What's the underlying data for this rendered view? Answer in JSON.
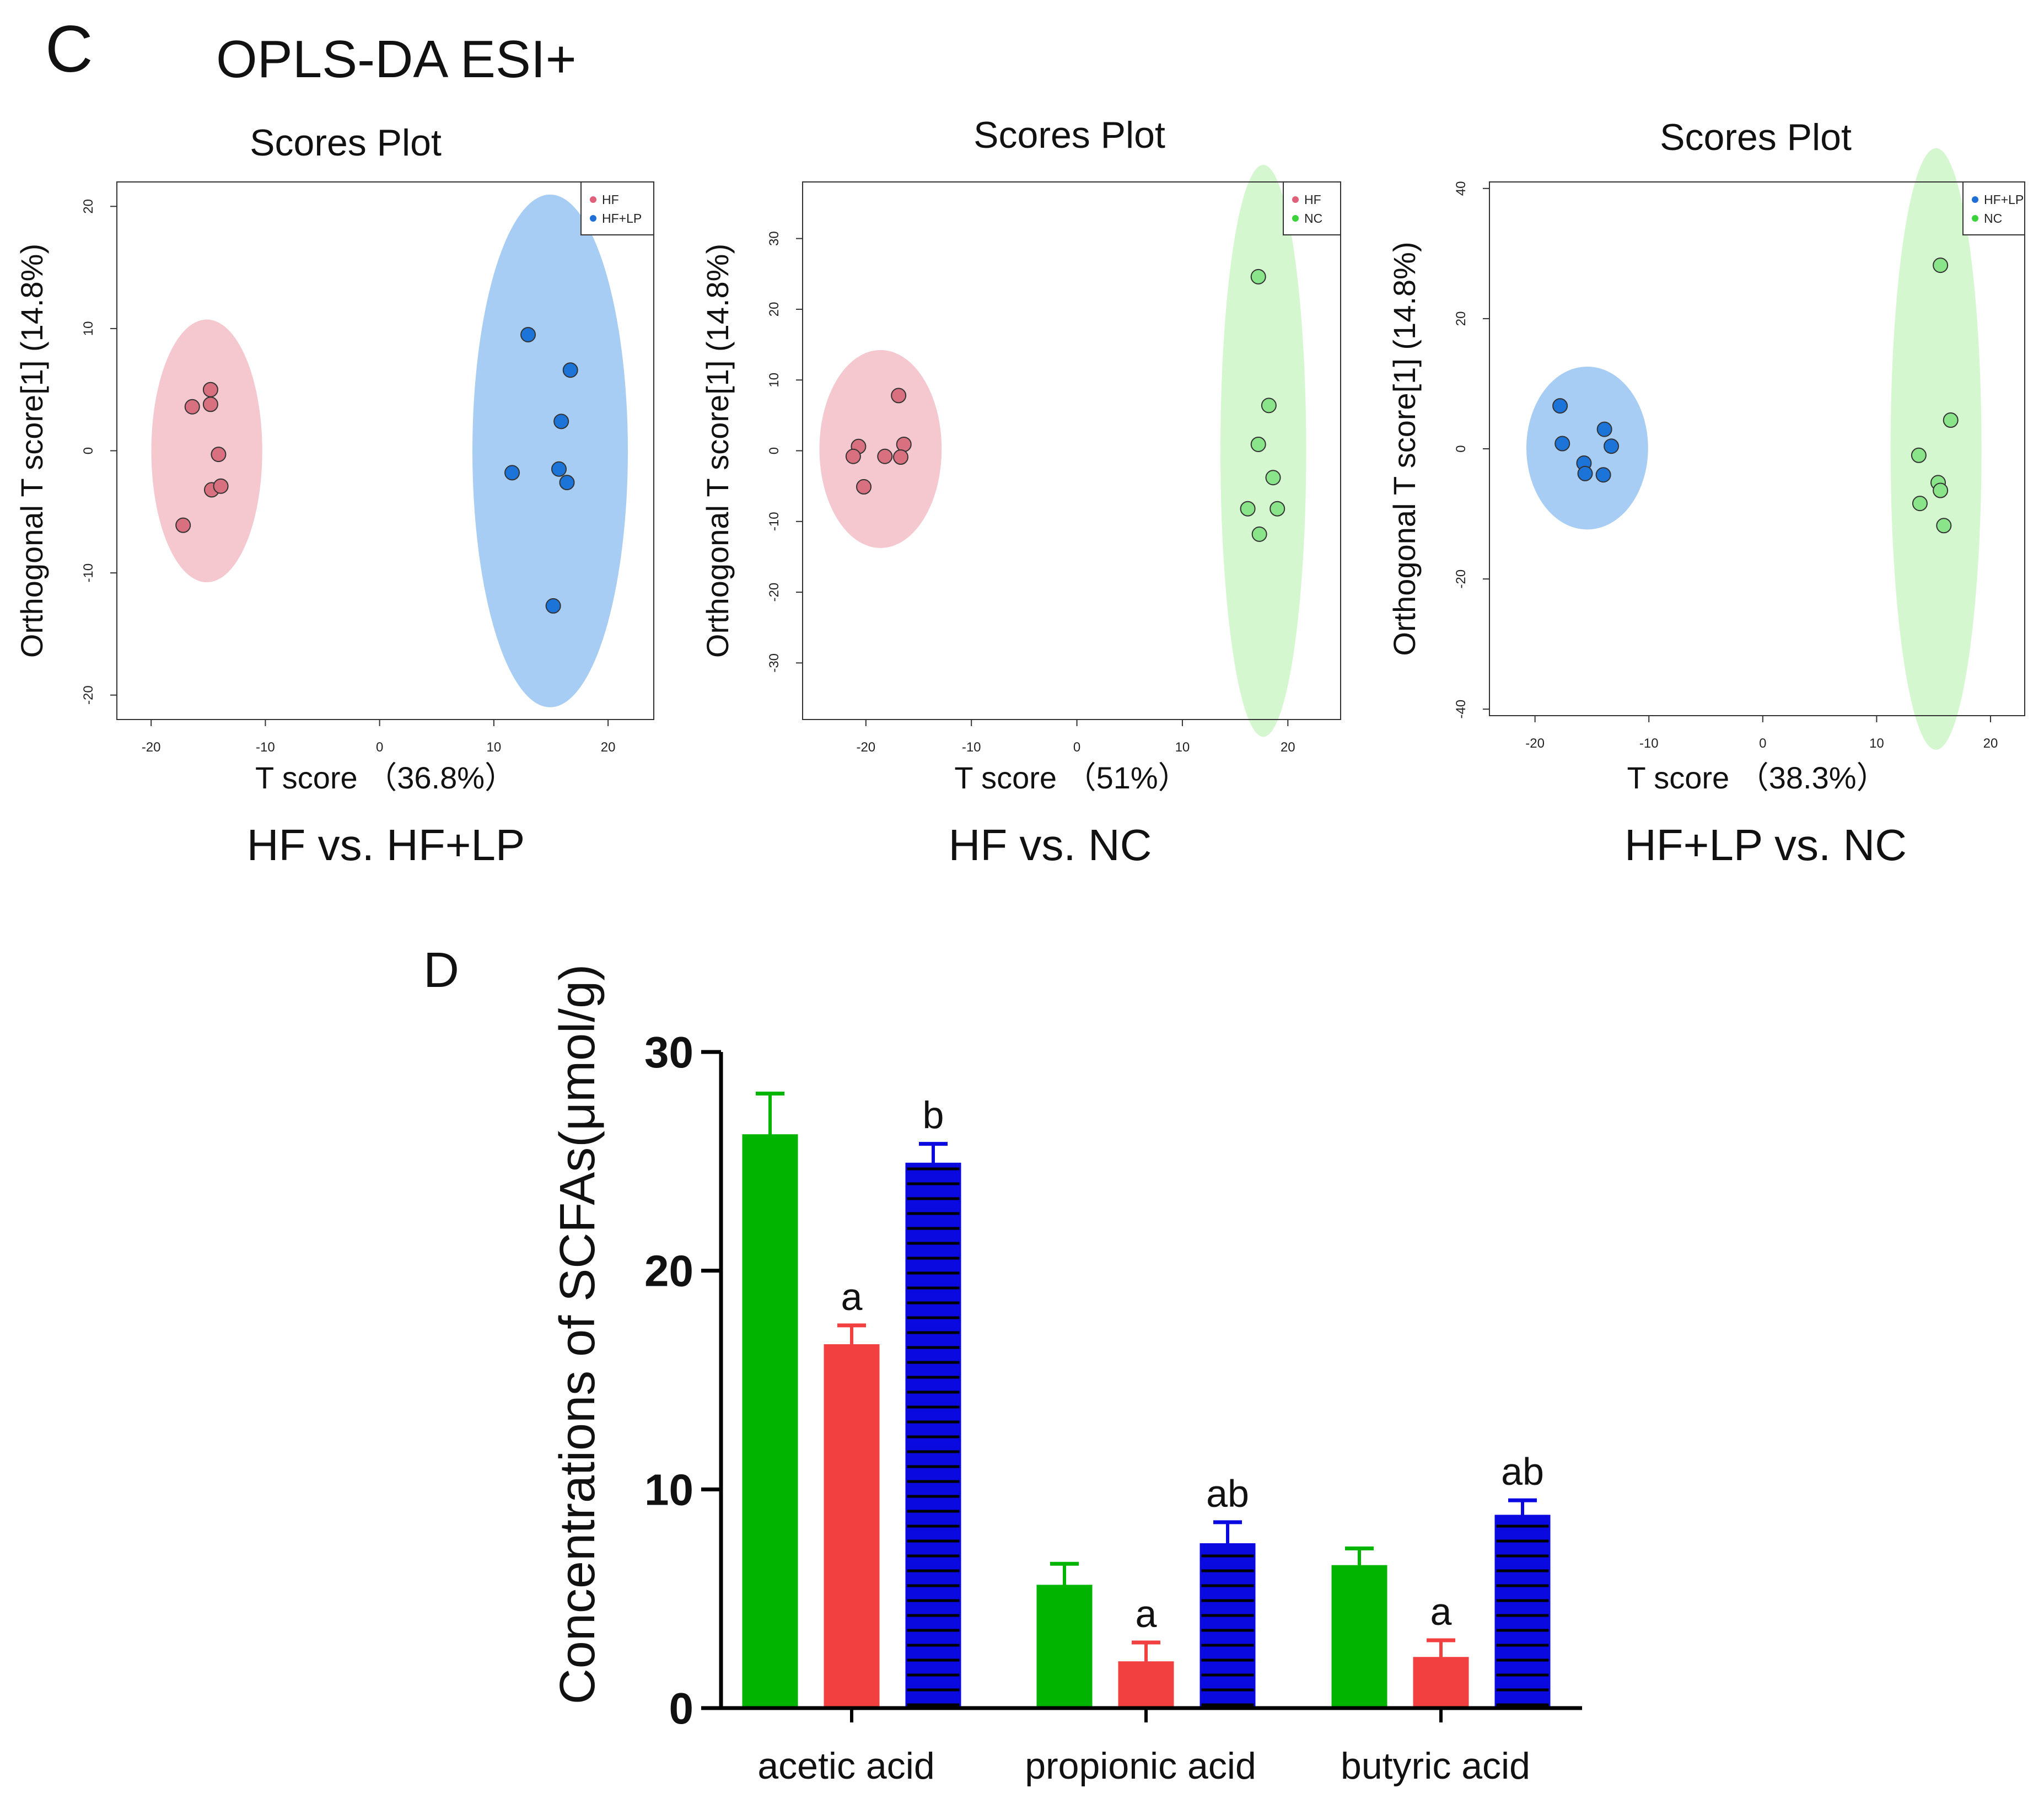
{
  "panel_c": {
    "letter": "C",
    "title": "OPLS-DA   ESI+"
  },
  "panel_d": {
    "letter": "D"
  },
  "chart_data": [
    {
      "type": "scatter",
      "title": "Scores   Plot",
      "subtitle": "HF vs. HF+LP",
      "xlabel": "T score   （36.8%）",
      "ylabel": "Orthogonal T   score[1] (14.8%)",
      "xlim": [
        -23,
        24
      ],
      "ylim": [
        -22,
        22
      ],
      "xticks": [
        -20,
        -10,
        0,
        10,
        20
      ],
      "yticks": [
        -20,
        -10,
        0,
        10,
        20
      ],
      "xtick_labels": [
        "-20",
        "-10",
        "0",
        "10",
        "20"
      ],
      "ytick_labels": [
        "-20",
        "-10",
        "0",
        "10",
        "20"
      ],
      "legend_position": "top-right",
      "series": [
        {
          "name": "HF",
          "color": "#e0607a",
          "fill": "#d9707f",
          "ellipse": "#f5c8cf",
          "points": [
            [
              -14.8,
              5.0
            ],
            [
              -16.4,
              3.6
            ],
            [
              -14.8,
              3.8
            ],
            [
              -14.1,
              -0.3
            ],
            [
              -14.7,
              -3.2
            ],
            [
              -13.9,
              -2.9
            ],
            [
              -17.2,
              -6.1
            ]
          ]
        },
        {
          "name": "HF+LP",
          "color": "#1f6fd6",
          "fill": "#1d74d8",
          "ellipse": "#a8cdf5",
          "points": [
            [
              13.0,
              9.5
            ],
            [
              16.7,
              6.6
            ],
            [
              15.9,
              2.4
            ],
            [
              11.6,
              -1.8
            ],
            [
              15.7,
              -1.5
            ],
            [
              16.4,
              -2.6
            ],
            [
              15.2,
              -12.7
            ]
          ]
        }
      ]
    },
    {
      "type": "scatter",
      "title": "Scores   Plot",
      "subtitle": "HF vs. NC",
      "xlabel": "T score   （51%）",
      "ylabel": "Orthogonal T   score[1] (14.8%)",
      "xlim": [
        -26,
        25
      ],
      "ylim": [
        -38,
        38
      ],
      "xticks": [
        -20,
        -10,
        0,
        10,
        20
      ],
      "yticks": [
        -30,
        -20,
        -10,
        0,
        10,
        20,
        30
      ],
      "xtick_labels": [
        "-20",
        "-10",
        "0",
        "10",
        "20"
      ],
      "ytick_labels": [
        "-30",
        "-20",
        "-10",
        "0",
        "10",
        "20",
        "30"
      ],
      "legend_position": "top-right",
      "series": [
        {
          "name": "HF",
          "color": "#e0607a",
          "fill": "#d9707f",
          "ellipse": "#f5c8cf",
          "points": [
            [
              -16.9,
              7.8
            ],
            [
              -16.4,
              0.9
            ],
            [
              -20.7,
              0.6
            ],
            [
              -21.2,
              -0.8
            ],
            [
              -18.2,
              -0.8
            ],
            [
              -16.7,
              -0.9
            ],
            [
              -20.2,
              -5.1
            ]
          ]
        },
        {
          "name": "NC",
          "color": "#3bd33b",
          "fill": "#8ae58a",
          "ellipse": "#d5f7d0",
          "points": [
            [
              17.2,
              24.6
            ],
            [
              18.2,
              6.4
            ],
            [
              17.2,
              0.9
            ],
            [
              18.6,
              -3.8
            ],
            [
              16.2,
              -8.2
            ],
            [
              19.0,
              -8.2
            ],
            [
              17.3,
              -11.8
            ]
          ]
        }
      ]
    },
    {
      "type": "scatter",
      "title": "Scores   Plot",
      "subtitle": "HF+LP  vs. NC",
      "xlabel": "T score   （38.3%）",
      "ylabel": "Orthogonal T   score[1] (14.8%)",
      "xlim": [
        -24,
        23
      ],
      "ylim": [
        -41,
        41
      ],
      "xticks": [
        -20,
        -10,
        0,
        10,
        20
      ],
      "yticks": [
        -40,
        -20,
        0,
        20,
        40
      ],
      "xtick_labels": [
        "-20",
        "-10",
        "0",
        "10",
        "20"
      ],
      "ytick_labels": [
        "-40",
        "-20",
        "0",
        "20",
        "40"
      ],
      "legend_position": "top-right",
      "series": [
        {
          "name": "HF+LP",
          "color": "#1f6fd6",
          "fill": "#1d74d8",
          "ellipse": "#a8cdf5",
          "points": [
            [
              -17.8,
              6.6
            ],
            [
              -13.9,
              3.0
            ],
            [
              -17.6,
              0.8
            ],
            [
              -13.3,
              0.4
            ],
            [
              -15.7,
              -2.2
            ],
            [
              -15.6,
              -3.8
            ],
            [
              -14.0,
              -4.0
            ]
          ]
        },
        {
          "name": "NC",
          "color": "#3bd33b",
          "fill": "#8ae58a",
          "ellipse": "#d5f7d0",
          "points": [
            [
              15.6,
              28.2
            ],
            [
              16.5,
              4.4
            ],
            [
              13.7,
              -1.0
            ],
            [
              15.4,
              -5.2
            ],
            [
              15.6,
              -6.4
            ],
            [
              13.8,
              -8.4
            ],
            [
              15.9,
              -11.8
            ]
          ]
        }
      ]
    },
    {
      "type": "bar",
      "title": "",
      "categories": [
        "acetic  acid",
        "propionic  acid",
        "butyric acid"
      ],
      "xlabel": "",
      "ylabel": "Concentrations of  SCFAs(μmol/g)",
      "ylim": [
        0,
        30
      ],
      "yticks": [
        0,
        10,
        20,
        30
      ],
      "ytick_labels": [
        "0",
        "10",
        "20",
        "30"
      ],
      "legend": "none",
      "series": [
        {
          "name": "NC",
          "color": "#00b400",
          "values": [
            26.2,
            5.6,
            6.5
          ],
          "errors": [
            1.9,
            1.0,
            0.8
          ],
          "labels": [
            "",
            "",
            ""
          ]
        },
        {
          "name": "HF",
          "color": "#f24040",
          "values": [
            16.6,
            2.1,
            2.3
          ],
          "errors": [
            0.9,
            0.9,
            0.8
          ],
          "labels": [
            "a",
            "a",
            "a"
          ]
        },
        {
          "name": "HF+LP",
          "color": "#0a0ae0",
          "values": [
            24.9,
            7.5,
            8.8
          ],
          "errors": [
            0.9,
            1.0,
            0.7
          ],
          "labels": [
            "b",
            "ab",
            "ab"
          ]
        }
      ]
    }
  ]
}
